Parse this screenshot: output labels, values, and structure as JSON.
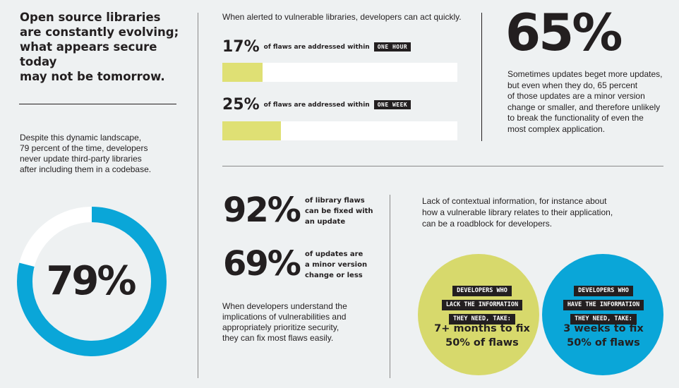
{
  "headline": "Open source libraries\nare constantly evolving;\nwhat appears secure today\nmay not be tomorrow.",
  "lead_text": "Despite this dynamic landscape,\n79 percent of the time, developers\nnever update third-party libraries\nafter including them in a codebase.",
  "donut": {
    "label": "79%",
    "value": 0.79,
    "color": "#0aa6d8",
    "track_color": "#ffffff"
  },
  "bars_intro": "When alerted to vulnerable libraries, developers can act quickly.",
  "bars": [
    {
      "pct": "17%",
      "text": "of flaws are addressed within",
      "tag": "ONE HOUR",
      "value": 0.17
    },
    {
      "pct": "25%",
      "text": "of flaws are addressed within",
      "tag": "ONE WEEK",
      "value": 0.25
    }
  ],
  "bar_color": "#dfe074",
  "stat65": {
    "big": "65%",
    "text": "Sometimes updates beget more updates,\nbut even when they do, 65 percent\nof those updates are a minor version\nchange or smaller, and therefore unlikely\nto break the functionality of even the\nmost complex application."
  },
  "stats": [
    {
      "big": "92%",
      "text": "of library flaws\ncan be fixed with\nan update"
    },
    {
      "big": "69%",
      "text": "of updates are\na minor version\nchange or less"
    }
  ],
  "mid_text": "When developers understand the\nimplications of vulnerabilities and\nappropriately prioritize security,\nthey can fix most flaws easily.",
  "venn_intro": "Lack of contextual information, for instance about\nhow a vulnerable library relates to their application,\ncan be a roadblock for developers.",
  "venn": {
    "left": {
      "tags": [
        "DEVELOPERS WHO",
        "LACK THE INFORMATION",
        "THEY NEED, TAKE:"
      ],
      "result": "7+ months to fix\n50% of flaws",
      "color": "#d7d96c"
    },
    "right": {
      "tags": [
        "DEVELOPERS WHO",
        "HAVE THE INFORMATION",
        "THEY NEED, TAKE:"
      ],
      "result": "3 weeks to fix\n50% of flaws",
      "color": "#0aa6d8"
    },
    "overlap_color": "#11965a"
  }
}
